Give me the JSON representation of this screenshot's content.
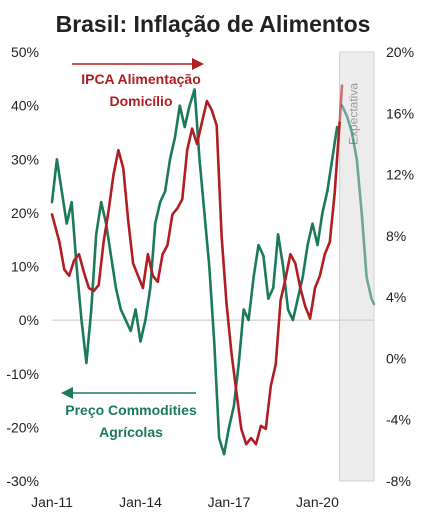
{
  "chart_data": {
    "type": "line",
    "title": "Brasil: Inflação de Alimentos",
    "x_ticks": [
      "Jan-11",
      "Jan-14",
      "Jan-17",
      "Jan-20"
    ],
    "x_range": [
      "2011-01",
      "2021-12"
    ],
    "y_left": {
      "ticks": [
        "50%",
        "40%",
        "30%",
        "20%",
        "10%",
        "0%",
        "-10%",
        "-20%",
        "-30%"
      ],
      "ylim": [
        -30,
        50
      ]
    },
    "y_right": {
      "ticks": [
        "20%",
        "16%",
        "12%",
        "8%",
        "4%",
        "0%",
        "-4%",
        "-8%"
      ],
      "ylim": [
        -8,
        20
      ]
    },
    "forecast": {
      "label": "Expectativa",
      "start": "2020-10",
      "end": "2021-12"
    },
    "series": [
      {
        "name": "IPCA Alimentação Domicílio",
        "axis": "right",
        "color": "#b01e23",
        "arrow": "right",
        "points": [
          [
            "2011-01",
            9.4
          ],
          [
            "2011-02",
            8.8
          ],
          [
            "2011-04",
            7.6
          ],
          [
            "2011-06",
            5.8
          ],
          [
            "2011-08",
            5.4
          ],
          [
            "2011-10",
            6.4
          ],
          [
            "2011-12",
            6.8
          ],
          [
            "2012-02",
            5.6
          ],
          [
            "2012-04",
            4.6
          ],
          [
            "2012-06",
            4.4
          ],
          [
            "2012-08",
            4.8
          ],
          [
            "2012-10",
            7.6
          ],
          [
            "2012-12",
            9.6
          ],
          [
            "2013-02",
            12.0
          ],
          [
            "2013-04",
            13.6
          ],
          [
            "2013-06",
            12.4
          ],
          [
            "2013-08",
            9.0
          ],
          [
            "2013-10",
            6.2
          ],
          [
            "2013-12",
            5.4
          ],
          [
            "2014-02",
            4.6
          ],
          [
            "2014-04",
            6.8
          ],
          [
            "2014-06",
            5.4
          ],
          [
            "2014-08",
            5.0
          ],
          [
            "2014-10",
            6.8
          ],
          [
            "2014-12",
            7.4
          ],
          [
            "2015-02",
            9.4
          ],
          [
            "2015-04",
            9.8
          ],
          [
            "2015-06",
            10.4
          ],
          [
            "2015-08",
            13.6
          ],
          [
            "2015-10",
            15.0
          ],
          [
            "2015-12",
            14.0
          ],
          [
            "2016-02",
            15.4
          ],
          [
            "2016-04",
            16.8
          ],
          [
            "2016-06",
            16.2
          ],
          [
            "2016-08",
            15.2
          ],
          [
            "2016-10",
            8.0
          ],
          [
            "2016-12",
            3.6
          ],
          [
            "2017-02",
            0.4
          ],
          [
            "2017-04",
            -2.2
          ],
          [
            "2017-06",
            -4.6
          ],
          [
            "2017-08",
            -5.6
          ],
          [
            "2017-10",
            -5.2
          ],
          [
            "2017-12",
            -5.6
          ],
          [
            "2018-02",
            -4.4
          ],
          [
            "2018-04",
            -4.6
          ],
          [
            "2018-06",
            -1.8
          ],
          [
            "2018-08",
            -0.4
          ],
          [
            "2018-10",
            3.8
          ],
          [
            "2018-12",
            5.2
          ],
          [
            "2019-02",
            6.8
          ],
          [
            "2019-04",
            6.2
          ],
          [
            "2019-06",
            4.6
          ],
          [
            "2019-08",
            3.4
          ],
          [
            "2019-10",
            2.6
          ],
          [
            "2019-12",
            4.6
          ],
          [
            "2020-02",
            5.4
          ],
          [
            "2020-04",
            6.8
          ],
          [
            "2020-06",
            7.6
          ],
          [
            "2020-08",
            10.8
          ],
          [
            "2020-10",
            15.4
          ],
          [
            "2020-11",
            17.8
          ]
        ]
      },
      {
        "name": "Preço Commodities Agrícolas",
        "axis": "left",
        "color": "#1b7a5c",
        "arrow": "left",
        "points": [
          [
            "2011-01",
            22
          ],
          [
            "2011-03",
            30
          ],
          [
            "2011-05",
            24
          ],
          [
            "2011-07",
            18
          ],
          [
            "2011-09",
            22
          ],
          [
            "2011-11",
            10
          ],
          [
            "2012-01",
            0
          ],
          [
            "2012-03",
            -8
          ],
          [
            "2012-05",
            2
          ],
          [
            "2012-07",
            16
          ],
          [
            "2012-09",
            22
          ],
          [
            "2012-11",
            18
          ],
          [
            "2013-01",
            12
          ],
          [
            "2013-03",
            6
          ],
          [
            "2013-05",
            2
          ],
          [
            "2013-07",
            0
          ],
          [
            "2013-09",
            -2
          ],
          [
            "2013-11",
            2
          ],
          [
            "2014-01",
            -4
          ],
          [
            "2014-03",
            0
          ],
          [
            "2014-05",
            6
          ],
          [
            "2014-07",
            18
          ],
          [
            "2014-09",
            22
          ],
          [
            "2014-11",
            24
          ],
          [
            "2015-01",
            30
          ],
          [
            "2015-03",
            34
          ],
          [
            "2015-05",
            40
          ],
          [
            "2015-07",
            36
          ],
          [
            "2015-09",
            40
          ],
          [
            "2015-11",
            43
          ],
          [
            "2016-01",
            30
          ],
          [
            "2016-03",
            20
          ],
          [
            "2016-05",
            10
          ],
          [
            "2016-07",
            -4
          ],
          [
            "2016-09",
            -22
          ],
          [
            "2016-11",
            -25
          ],
          [
            "2017-01",
            -20
          ],
          [
            "2017-03",
            -16
          ],
          [
            "2017-05",
            -8
          ],
          [
            "2017-07",
            2
          ],
          [
            "2017-09",
            0
          ],
          [
            "2017-11",
            8
          ],
          [
            "2018-01",
            14
          ],
          [
            "2018-03",
            12
          ],
          [
            "2018-05",
            4
          ],
          [
            "2018-07",
            6
          ],
          [
            "2018-09",
            16
          ],
          [
            "2018-11",
            10
          ],
          [
            "2019-01",
            2
          ],
          [
            "2019-03",
            0
          ],
          [
            "2019-05",
            4
          ],
          [
            "2019-07",
            8
          ],
          [
            "2019-09",
            14
          ],
          [
            "2019-11",
            18
          ],
          [
            "2020-01",
            14
          ],
          [
            "2020-03",
            20
          ],
          [
            "2020-05",
            24
          ],
          [
            "2020-07",
            30
          ],
          [
            "2020-09",
            36
          ],
          [
            "2020-11",
            40
          ],
          [
            "2021-01",
            38
          ],
          [
            "2021-03",
            35
          ],
          [
            "2021-05",
            30
          ],
          [
            "2021-07",
            20
          ],
          [
            "2021-09",
            8
          ],
          [
            "2021-11",
            4
          ],
          [
            "2021-12",
            3
          ]
        ]
      }
    ],
    "annotations": [
      {
        "text_lines": [
          "IPCA Alimentação",
          "Domicílio"
        ],
        "series": "IPCA Alimentação Domicílio"
      },
      {
        "text_lines": [
          "Preço Commodities",
          "Agrícolas"
        ],
        "series": "Preço Commodities Agrícolas"
      }
    ]
  }
}
